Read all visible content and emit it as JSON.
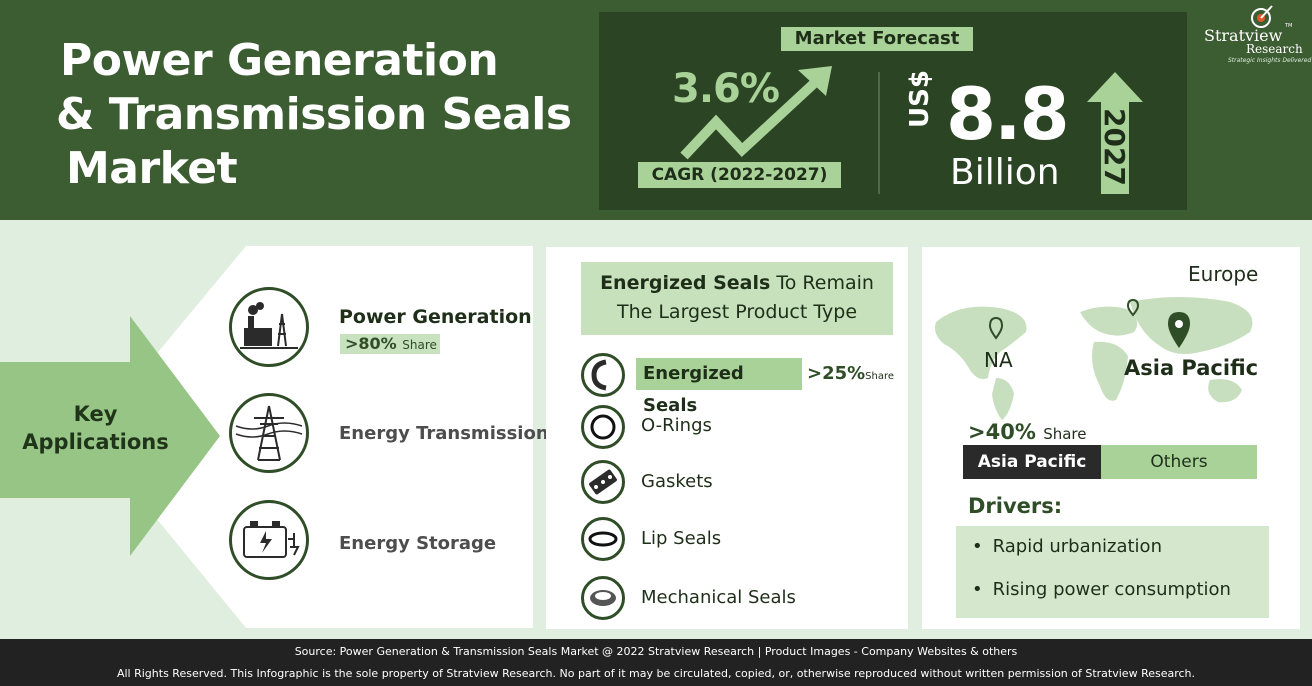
{
  "header": {
    "title_lines": [
      "Power Generation",
      "& Transmission Seals",
      "Market"
    ],
    "market_forecast_label": "Market Forecast",
    "cagr_value": "3.6%",
    "cagr_label": "CAGR (2022-2027)",
    "currency": "US$",
    "market_size": "8.8",
    "market_unit": "Billion",
    "forecast_year": "2027",
    "logo_name_part1": "Stratview",
    "logo_name_part2": "Research",
    "logo_tagline": "Strategic Insights Delivered",
    "logo_tm": "TM"
  },
  "applications": {
    "heading_lines": [
      "Key",
      "Applications"
    ],
    "items": [
      {
        "label": "Power Generation",
        "share": ">80%",
        "share_word": "Share",
        "icon": "power-plant-icon"
      },
      {
        "label": "Energy Transmission",
        "icon": "transmission-tower-icon"
      },
      {
        "label": "Energy Storage",
        "icon": "battery-storage-icon"
      }
    ]
  },
  "product": {
    "heading_bold": "Energized Seals",
    "heading_rest_line1": " To Remain",
    "heading_line2": "The Largest Product Type",
    "items": [
      {
        "label": "Energized Seals",
        "share": ">25%",
        "share_word": "Share",
        "icon": "energized-seal-icon"
      },
      {
        "label": "O-Rings",
        "icon": "o-ring-icon"
      },
      {
        "label": "Gaskets",
        "icon": "gasket-icon"
      },
      {
        "label": "Lip Seals",
        "icon": "lip-seal-icon"
      },
      {
        "label": "Mechanical Seals",
        "icon": "mechanical-seal-icon"
      }
    ]
  },
  "region": {
    "labels": {
      "europe": "Europe",
      "na": "NA",
      "asia_pacific": "Asia Pacific"
    },
    "share": ">40%",
    "share_word": "Share",
    "bar_leader": "Asia Pacific",
    "bar_others": "Others",
    "drivers_title": "Drivers:",
    "drivers": [
      "Rapid urbanization",
      "Rising power consumption"
    ]
  },
  "footer": {
    "line1": "Source: Power Generation & Transmission Seals Market @ 2022 Stratview Research | Product Images - Company Websites & others",
    "line2": "All Rights Reserved. This Infographic is the sole property of Stratview Research. No part of it may be circulated, copied, or, otherwise reproduced without written permission of Stratview Research."
  },
  "colors": {
    "header_green": "#3c5c31",
    "dark_green": "#2b4424",
    "light_green": "#a8d298",
    "background": "#dfeede",
    "footer": "#222222"
  }
}
